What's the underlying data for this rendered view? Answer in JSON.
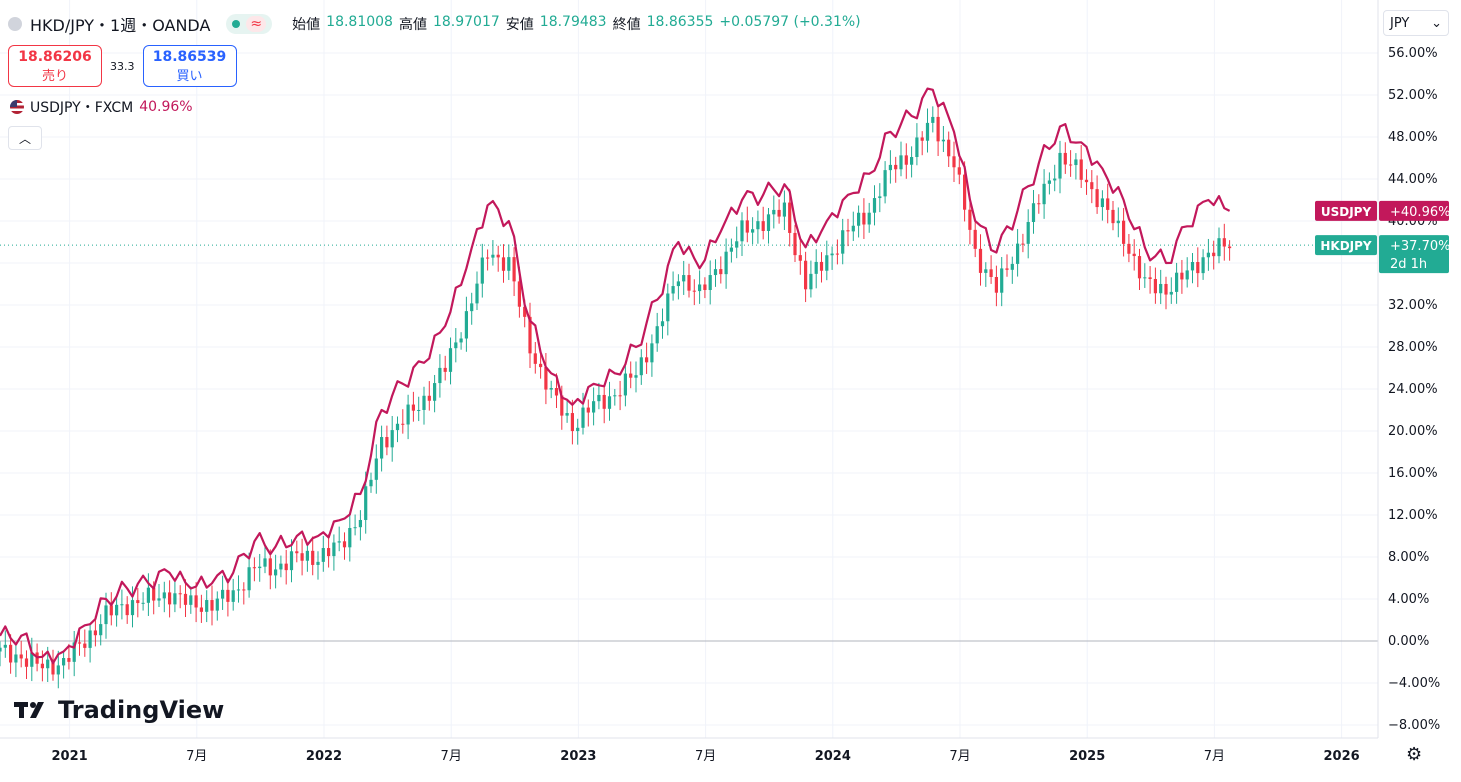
{
  "header": {
    "symbol": "HKD/JPY・1週・OANDA",
    "wave_icon": "≈",
    "ohlc": [
      {
        "label": "始値",
        "value": "18.81008"
      },
      {
        "label": "高値",
        "value": "18.97017"
      },
      {
        "label": "安値",
        "value": "18.79483"
      },
      {
        "label": "終値",
        "value": "18.86355"
      }
    ],
    "change": "+0.05797 (+0.31%)"
  },
  "trade": {
    "sell_price": "18.86206",
    "sell_label": "売り",
    "spread": "33.3",
    "buy_price": "18.86539",
    "buy_label": "買い"
  },
  "compare": {
    "label": "USDJPY・FXCM",
    "value": "40.96%"
  },
  "currency": {
    "value": "JPY"
  },
  "brand": "TradingView",
  "colors": {
    "up": "#22ab94",
    "down": "#f23645",
    "usdjpy": "#c2185b",
    "hkdjpy_badge": "#22ab94"
  },
  "chart_data": {
    "type": "line",
    "yaxis_unit": "percent",
    "ylim": [
      -9,
      58
    ],
    "y_ticks": [
      "56.00%",
      "52.00%",
      "48.00%",
      "44.00%",
      "40.00%",
      "36.00%",
      "32.00%",
      "28.00%",
      "24.00%",
      "20.00%",
      "16.00%",
      "12.00%",
      "8.00%",
      "4.00%",
      "0.00%",
      "−4.00%",
      "−8.00%"
    ],
    "x_ticks": [
      "2021",
      "7月",
      "2022",
      "7月",
      "2023",
      "7月",
      "2024",
      "7月",
      "2025",
      "7月",
      "2026"
    ],
    "xlim": [
      "2020-10",
      "2026-03"
    ],
    "series": [
      {
        "name": "USDJPY",
        "style": "line",
        "last_label": "+40.96%",
        "x": [
          "2020-10",
          "2020-11",
          "2020-12",
          "2021-01",
          "2021-02",
          "2021-03",
          "2021-04",
          "2021-05",
          "2021-06",
          "2021-07",
          "2021-08",
          "2021-09",
          "2021-10",
          "2021-11",
          "2021-12",
          "2022-01",
          "2022-02",
          "2022-03",
          "2022-04",
          "2022-05",
          "2022-06",
          "2022-07",
          "2022-08",
          "2022-09",
          "2022-10",
          "2022-11",
          "2022-12",
          "2023-01",
          "2023-02",
          "2023-03",
          "2023-04",
          "2023-05",
          "2023-06",
          "2023-07",
          "2023-08",
          "2023-09",
          "2023-10",
          "2023-11",
          "2023-12",
          "2024-01",
          "2024-02",
          "2024-03",
          "2024-04",
          "2024-05",
          "2024-06",
          "2024-07",
          "2024-08",
          "2024-09",
          "2024-10",
          "2024-11",
          "2024-12",
          "2025-01",
          "2025-02",
          "2025-03",
          "2025-04",
          "2025-05",
          "2025-06",
          "2025-07",
          "2025-08"
        ],
        "values": [
          0.5,
          0.5,
          -1.5,
          -1.0,
          1.5,
          4.0,
          5.0,
          5.5,
          6.5,
          5.0,
          5.5,
          6.5,
          9.5,
          9.0,
          10.0,
          10.0,
          11.5,
          14.0,
          22.0,
          24.5,
          26.5,
          30.0,
          35.5,
          41.5,
          40.0,
          30.5,
          25.5,
          22.5,
          24.5,
          25.5,
          28.0,
          32.5,
          38.0,
          35.5,
          39.0,
          42.0,
          42.5,
          43.5,
          37.5,
          40.0,
          42.5,
          44.5,
          48.5,
          50.0,
          52.5,
          48.5,
          40.0,
          37.0,
          41.0,
          45.5,
          49.0,
          47.5,
          45.0,
          42.0,
          37.5,
          36.0,
          39.5,
          42.0,
          40.96
        ]
      },
      {
        "name": "HKDJPY",
        "style": "candles",
        "last_label": "+37.70%",
        "countdown": "2d 1h",
        "x": [
          "2020-10",
          "2020-11",
          "2020-12",
          "2021-01",
          "2021-02",
          "2021-03",
          "2021-04",
          "2021-05",
          "2021-06",
          "2021-07",
          "2021-08",
          "2021-09",
          "2021-10",
          "2021-11",
          "2021-12",
          "2022-01",
          "2022-02",
          "2022-03",
          "2022-04",
          "2022-05",
          "2022-06",
          "2022-07",
          "2022-08",
          "2022-09",
          "2022-10",
          "2022-11",
          "2022-12",
          "2023-01",
          "2023-02",
          "2023-03",
          "2023-04",
          "2023-05",
          "2023-06",
          "2023-07",
          "2023-08",
          "2023-09",
          "2023-10",
          "2023-11",
          "2023-12",
          "2024-01",
          "2024-02",
          "2024-03",
          "2024-04",
          "2024-05",
          "2024-06",
          "2024-07",
          "2024-08",
          "2024-09",
          "2024-10",
          "2024-11",
          "2024-12",
          "2025-01",
          "2025-02",
          "2025-03",
          "2025-04",
          "2025-05",
          "2025-06",
          "2025-07",
          "2025-08"
        ],
        "values": [
          -1.0,
          -1.5,
          -2.5,
          -2.0,
          0.0,
          2.5,
          3.5,
          4.0,
          4.5,
          3.5,
          3.5,
          4.5,
          7.0,
          7.0,
          8.0,
          8.0,
          9.0,
          12.0,
          19.0,
          21.0,
          23.0,
          26.0,
          31.0,
          37.0,
          36.0,
          28.0,
          23.5,
          20.5,
          22.5,
          23.5,
          25.5,
          29.5,
          35.0,
          33.0,
          36.0,
          39.0,
          40.0,
          41.0,
          34.0,
          36.5,
          39.0,
          41.0,
          45.0,
          46.5,
          49.5,
          45.5,
          37.0,
          33.5,
          37.5,
          42.0,
          46.0,
          44.5,
          41.5,
          38.5,
          34.0,
          33.5,
          35.0,
          37.0,
          37.7
        ]
      }
    ]
  }
}
